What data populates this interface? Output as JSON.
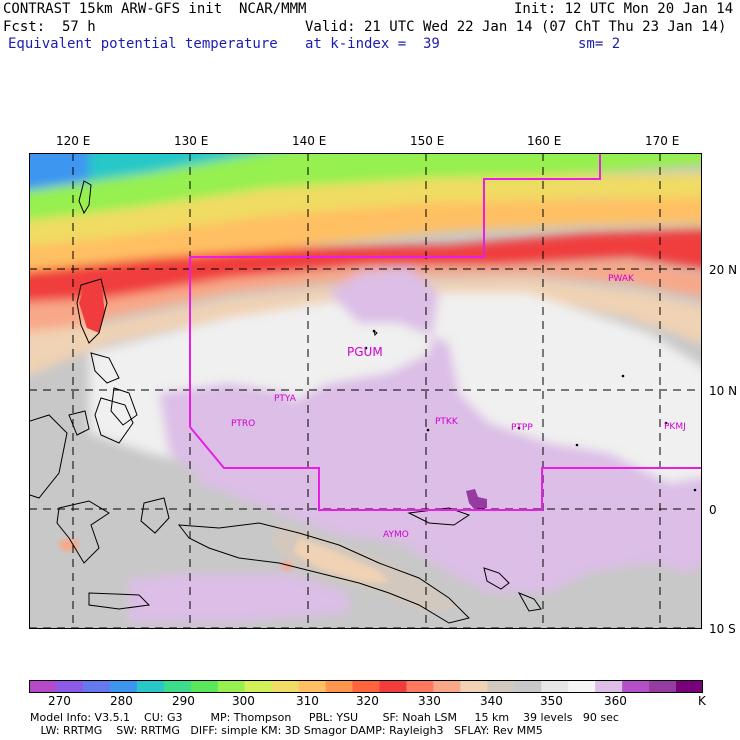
{
  "header": {
    "line1_left": "CONTRAST 15km ARW-GFS init  NCAR/MMM",
    "line1_right": "Init: 12 UTC Mon 20 Jan 14",
    "line2_left": "Fcst:  57 h",
    "line2_right": "Valid: 21 UTC Wed 22 Jan 14 (07 ChT Thu 23 Jan 14)",
    "line3_field": "Equivalent potential temperature",
    "line3_level": "at k-index =  39",
    "line3_sm": "sm= 2"
  },
  "map": {
    "lon_labels": [
      "120 E",
      "130 E",
      "140 E",
      "150 E",
      "160 E",
      "170 E"
    ],
    "lat_labels": [
      "20 N",
      "10 N",
      "0",
      "10 S"
    ],
    "stations": [
      "PWAK",
      "PGUM",
      "PTYA",
      "PTRO",
      "PTKK",
      "PTPP",
      "PKMJ",
      "AYMO"
    ],
    "colors": {
      "boundary": "#e61ee6",
      "grid": "#000000",
      "land_outline": "#000000"
    }
  },
  "colorbar": {
    "ticks": [
      "270",
      "280",
      "290",
      "300",
      "310",
      "320",
      "330",
      "340",
      "350",
      "360"
    ],
    "unit": "K",
    "colors": [
      "#b44ac8",
      "#8c5ae6",
      "#6478f0",
      "#3c96f0",
      "#28c8c8",
      "#3cdc8c",
      "#5ae65a",
      "#96f050",
      "#d2f05a",
      "#f0dc64",
      "#ffc064",
      "#ff9650",
      "#ff643c",
      "#f03c3c",
      "#ff7860",
      "#f8a888",
      "#f0d2b4",
      "#d2c8be",
      "#c8c8c8",
      "#e6e6e6",
      "#f5f5f5",
      "#dcbee6",
      "#b450c8",
      "#963ca0",
      "#780078"
    ]
  },
  "model_info": {
    "line1": "Model Info: V3.5.1    CU: G3        MP: Thompson     PBL: YSU       SF: Noah LSM     15 km    39 levels   90 sec",
    "line2": "   LW: RRTMG    SW: RRTMG   DIFF: simple KM: 3D Smagor DAMP: Rayleigh3   SFLAY: Rev MM5"
  }
}
